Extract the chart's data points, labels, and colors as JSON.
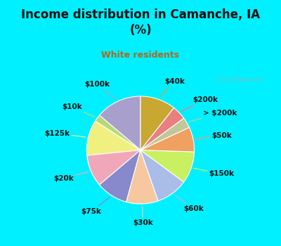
{
  "title": "Income distribution in Camanche, IA\n(%)",
  "subtitle": "White residents",
  "labels": [
    "$100k",
    "$10k",
    "$125k",
    "$20k",
    "$75k",
    "$30k",
    "$60k",
    "$150k",
    "$50k",
    "> $200k",
    "$200k",
    "$40k"
  ],
  "values": [
    13,
    2,
    10,
    9,
    9,
    9,
    9,
    9,
    7,
    3,
    4,
    10
  ],
  "colors": [
    "#a99fcc",
    "#b8d878",
    "#f0f080",
    "#f0a8b8",
    "#8888cc",
    "#f5c8a0",
    "#aabce8",
    "#c8f060",
    "#f0a060",
    "#c0c898",
    "#e88080",
    "#c8a830"
  ],
  "bg_top": "#00f0ff",
  "bg_chart_grad_top": "#e0f5ee",
  "bg_chart_grad_bot": "#d0eee8",
  "title_color": "#111111",
  "subtitle_color": "#b06820",
  "startangle": 90,
  "label_fontsize": 7.5,
  "title_fontsize": 12,
  "subtitle_fontsize": 9
}
